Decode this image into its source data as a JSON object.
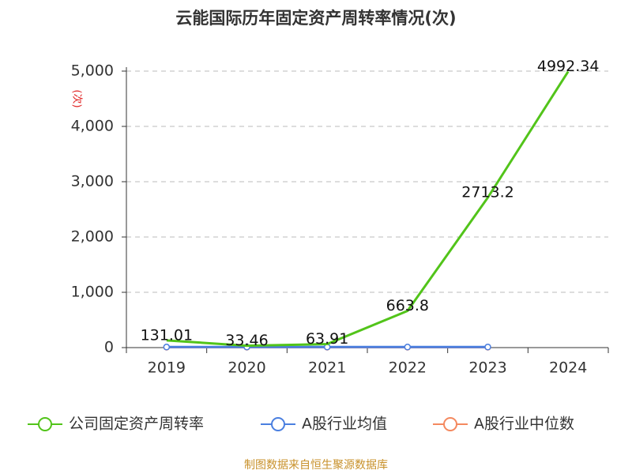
{
  "chart_data": {
    "type": "line",
    "title": "云能国际历年固定资产周转率情况(次)",
    "y_label": "(次)",
    "categories": [
      "2019",
      "2020",
      "2021",
      "2022",
      "2023",
      "2024"
    ],
    "series": [
      {
        "name": "公司固定资产周转率",
        "color": "#52c41a",
        "values": [
          131.01,
          33.46,
          63.91,
          663.8,
          2713.2,
          4992.34
        ],
        "show_labels": true,
        "markers": false
      },
      {
        "name": "A股行业均值",
        "color": "#4a7fe0",
        "values": [
          10,
          10,
          10,
          10,
          10,
          null
        ],
        "show_labels": false,
        "markers": true
      },
      {
        "name": "A股行业中位数",
        "color": "#f4895f",
        "values": [
          8,
          8,
          8,
          8,
          8,
          null
        ],
        "show_labels": false,
        "markers": true
      }
    ],
    "ylim": [
      0,
      5000
    ],
    "yticks": [
      0,
      {
        "value": 1000,
        "label": "1,000"
      },
      {
        "value": 2000,
        "label": "2,000"
      },
      {
        "value": 3000,
        "label": "3,000"
      },
      {
        "value": 4000,
        "label": "4,000"
      },
      {
        "value": 5000,
        "label": "5,000"
      }
    ],
    "grid": true,
    "legend": "bottom",
    "source": "制图数据来自恒生聚源数据库"
  }
}
